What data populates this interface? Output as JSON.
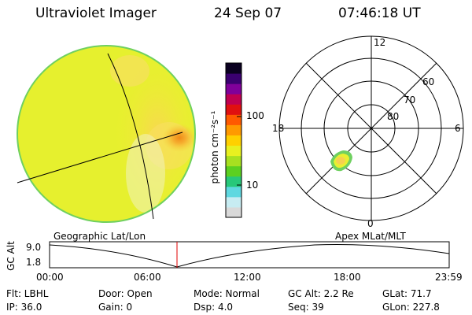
{
  "header": {
    "instrument": "Ultraviolet Imager",
    "date": "24 Sep 07",
    "time": "07:46:18 UT"
  },
  "colorbar": {
    "label": "photon cm⁻²s⁻¹",
    "tick_100": "100",
    "tick_10": "10",
    "colors": [
      "#d9d9d9",
      "#c7ecf2",
      "#5fd8e0",
      "#28c87a",
      "#5cd020",
      "#a8e020",
      "#e8f020",
      "#ffd000",
      "#ff9a00",
      "#ff5a00",
      "#e01010",
      "#c00050",
      "#80009a",
      "#3a0070",
      "#0a0020"
    ]
  },
  "image_left": {
    "label": "Geographic Lat/Lon",
    "palette": {
      "bg": "#e8f230",
      "bright": "#f8cc40",
      "hot": "#f59a20",
      "edge": "#6fd060"
    }
  },
  "polar_plot": {
    "label": "Apex MLat/MLT",
    "mlt_12": "12",
    "mlt_18": "18",
    "mlt_6": "6",
    "mlt_0": "0",
    "lat_60": "60",
    "lat_70": "70",
    "lat_80": "80"
  },
  "orbit": {
    "ylabel": "GC Alt",
    "y_top": "9.0",
    "y_bottom": "1.8",
    "x_ticks": [
      "00:00",
      "06:00",
      "12:00",
      "18:00",
      "23:59"
    ],
    "current_time_marker_color": "#e00000"
  },
  "info": {
    "flt": "Flt: LBHL",
    "ip": "IP: 36.0",
    "door": "Door: Open",
    "gain": "Gain:  0",
    "mode": "Mode: Normal",
    "dsp": "Dsp:    4.0",
    "gcalt": "GC Alt: 2.2 Re",
    "seq": "Seq: 39",
    "glat": "GLat:  71.7",
    "glon": "GLon: 227.8"
  }
}
